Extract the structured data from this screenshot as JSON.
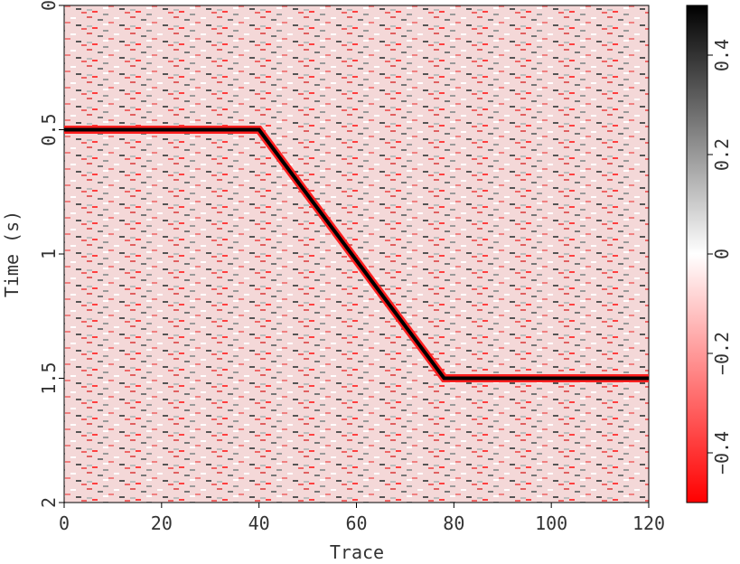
{
  "chart_data": {
    "type": "line",
    "x_label": "Trace",
    "y_label": "Time (s)",
    "x": [
      0,
      40,
      78,
      120
    ],
    "series": [
      {
        "color": "#000000",
        "values": [
          0.5,
          0.5,
          1.5,
          1.5
        ]
      }
    ],
    "xlim": [
      0,
      120
    ],
    "xticks": [
      0,
      20,
      40,
      60,
      80,
      100,
      120
    ],
    "ylim": [
      0,
      2
    ],
    "y_inverted": true,
    "yticks": [
      0,
      0.5,
      1,
      1.5,
      2
    ],
    "colorbar": {
      "lim": [
        -0.5,
        0.5
      ],
      "colors": [
        "#ff0000",
        "#ffffff",
        "#000000"
      ],
      "ticks": [
        {
          "value": -0.4,
          "label": "−0.4"
        },
        {
          "value": -0.2,
          "label": "−0.2"
        },
        0,
        0.2,
        0.4
      ]
    }
  }
}
